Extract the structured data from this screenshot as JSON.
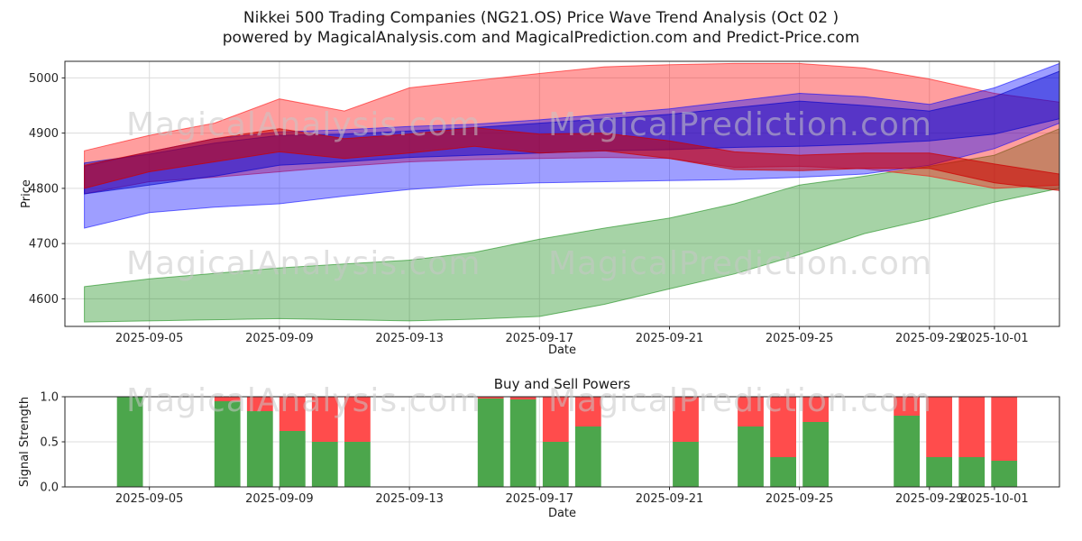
{
  "figure": {
    "title_line1": "Nikkei 500 Trading Companies (NG21.OS) Price Wave Trend Analysis (Oct 02 )",
    "title_line2": "powered by MagicalAnalysis.com and MagicalPrediction.com and Predict-Price.com"
  },
  "watermarks": {
    "left_text": "MagicalAnalysis.com",
    "right_text": "MagicalPrediction.com"
  },
  "chart_data": [
    {
      "type": "area",
      "title": "",
      "xlabel": "Date",
      "ylabel": "Price",
      "xlim": [
        2.4,
        33.0
      ],
      "ylim": [
        4550,
        5030
      ],
      "grid": true,
      "x_ticks": [
        5,
        9,
        13,
        17,
        21,
        25,
        29,
        31
      ],
      "x_tick_labels": [
        "2025-09-05",
        "2025-09-09",
        "2025-09-13",
        "2025-09-17",
        "2025-09-21",
        "2025-09-25",
        "2025-09-29",
        "2025-10-01"
      ],
      "y_ticks": [
        4600,
        4700,
        4800,
        4900,
        5000
      ],
      "y_tick_labels": [
        "4600",
        "4700",
        "4800",
        "4900",
        "5000"
      ],
      "x": [
        3,
        5,
        7,
        9,
        11,
        13,
        15,
        17,
        19,
        21,
        23,
        25,
        27,
        29,
        31,
        33
      ],
      "bands": [
        {
          "name": "green-support-band",
          "color": "#008000",
          "opacity": 0.35,
          "lower": [
            4558,
            4560,
            4562,
            4564,
            4562,
            4560,
            4563,
            4568,
            4590,
            4618,
            4645,
            4680,
            4718,
            4745,
            4775,
            4800
          ],
          "upper": [
            4622,
            4636,
            4646,
            4656,
            4663,
            4670,
            4684,
            4708,
            4728,
            4746,
            4772,
            4806,
            4822,
            4840,
            4860,
            4908
          ]
        },
        {
          "name": "red-outer-band",
          "color": "#ff0000",
          "opacity": 0.38,
          "lower": [
            4790,
            4812,
            4820,
            4830,
            4840,
            4848,
            4852,
            4854,
            4856,
            4854,
            4838,
            4840,
            4835,
            4822,
            4800,
            4806
          ],
          "upper": [
            4868,
            4896,
            4918,
            4962,
            4940,
            4982,
            4995,
            5008,
            5020,
            5024,
            5026,
            5026,
            5018,
            4998,
            4972,
            4956
          ]
        },
        {
          "name": "blue-outer-band",
          "color": "#0000ff",
          "opacity": 0.38,
          "lower": [
            4728,
            4756,
            4766,
            4772,
            4786,
            4798,
            4806,
            4810,
            4812,
            4814,
            4816,
            4820,
            4826,
            4842,
            4872,
            4918
          ],
          "upper": [
            4840,
            4866,
            4890,
            4902,
            4906,
            4912,
            4916,
            4924,
            4934,
            4944,
            4958,
            4972,
            4966,
            4952,
            4982,
            5026
          ]
        },
        {
          "name": "blue-core-band",
          "color": "#0000cc",
          "opacity": 0.45,
          "lower": [
            4790,
            4806,
            4822,
            4842,
            4848,
            4856,
            4860,
            4864,
            4868,
            4870,
            4874,
            4876,
            4880,
            4886,
            4898,
            4926
          ],
          "upper": [
            4846,
            4862,
            4882,
            4896,
            4898,
            4904,
            4910,
            4918,
            4926,
            4934,
            4946,
            4958,
            4950,
            4940,
            4966,
            5012
          ]
        },
        {
          "name": "red-core-wave",
          "color": "#cc0000",
          "opacity": 0.55,
          "lower": [
            4800,
            4830,
            4848,
            4866,
            4854,
            4864,
            4876,
            4864,
            4868,
            4854,
            4834,
            4832,
            4836,
            4836,
            4810,
            4796
          ],
          "upper": [
            4842,
            4866,
            4890,
            4908,
            4890,
            4898,
            4910,
            4898,
            4900,
            4886,
            4866,
            4860,
            4864,
            4864,
            4844,
            4826
          ]
        }
      ]
    },
    {
      "type": "bar",
      "title": "Buy and Sell Powers",
      "xlabel": "Date",
      "ylabel": "Signal Strength",
      "xlim": [
        2.4,
        33.0
      ],
      "ylim": [
        0,
        1.0
      ],
      "grid": true,
      "x_ticks": [
        5,
        9,
        13,
        17,
        21,
        25,
        29,
        31
      ],
      "x_tick_labels": [
        "2025-09-05",
        "2025-09-09",
        "2025-09-13",
        "2025-09-17",
        "2025-09-21",
        "2025-09-25",
        "2025-09-29",
        "2025-10-01"
      ],
      "y_ticks": [
        0,
        0.5,
        1.0
      ],
      "y_tick_labels": [
        "0.0",
        "0.5",
        "1.0"
      ],
      "bar_width": 0.8,
      "series_colors": {
        "buy": "#4ca64c",
        "sell": "#ff4c4c"
      },
      "bars": [
        {
          "x": 4.4,
          "buy": 1.0,
          "sell": 0.0
        },
        {
          "x": 7.4,
          "buy": 0.95,
          "sell": 0.05
        },
        {
          "x": 8.4,
          "buy": 0.84,
          "sell": 0.16
        },
        {
          "x": 9.4,
          "buy": 0.62,
          "sell": 0.38
        },
        {
          "x": 10.4,
          "buy": 0.5,
          "sell": 0.5
        },
        {
          "x": 11.4,
          "buy": 0.5,
          "sell": 0.5
        },
        {
          "x": 15.5,
          "buy": 0.98,
          "sell": 0.02
        },
        {
          "x": 16.5,
          "buy": 0.97,
          "sell": 0.03
        },
        {
          "x": 17.5,
          "buy": 0.5,
          "sell": 0.5
        },
        {
          "x": 18.5,
          "buy": 0.67,
          "sell": 0.33
        },
        {
          "x": 21.5,
          "buy": 0.5,
          "sell": 0.5
        },
        {
          "x": 23.5,
          "buy": 0.67,
          "sell": 0.33
        },
        {
          "x": 24.5,
          "buy": 0.33,
          "sell": 0.67
        },
        {
          "x": 25.5,
          "buy": 0.72,
          "sell": 0.28
        },
        {
          "x": 28.3,
          "buy": 0.79,
          "sell": 0.21
        },
        {
          "x": 29.3,
          "buy": 0.33,
          "sell": 0.67
        },
        {
          "x": 30.3,
          "buy": 0.33,
          "sell": 0.67
        },
        {
          "x": 31.3,
          "buy": 0.29,
          "sell": 0.71
        }
      ]
    }
  ]
}
